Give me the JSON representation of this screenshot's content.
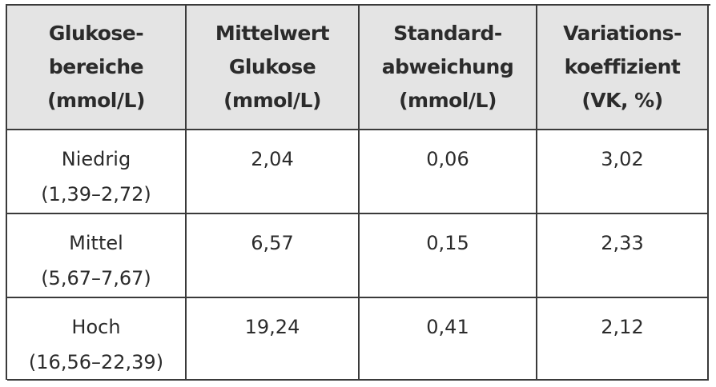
{
  "table": {
    "header": [
      [
        "Glukose-",
        "bereiche",
        "(mmol/L)"
      ],
      [
        "Mittelwert",
        "Glukose",
        "(mmol/L)"
      ],
      [
        "Standard-",
        "abweichung",
        "(mmol/L)"
      ],
      [
        "Variations-",
        "koeffizient",
        "(VK, %)"
      ]
    ],
    "rows": [
      [
        [
          "Niedrig",
          "(1,39–2,72)"
        ],
        "2,04",
        "0,06",
        "3,02"
      ],
      [
        [
          "Mittel",
          "(5,67–7,67)"
        ],
        "6,57",
        "0,15",
        "2,33"
      ],
      [
        [
          "Hoch",
          "(16,56–22,39)"
        ],
        "19,24",
        "0,41",
        "2,12"
      ]
    ]
  }
}
